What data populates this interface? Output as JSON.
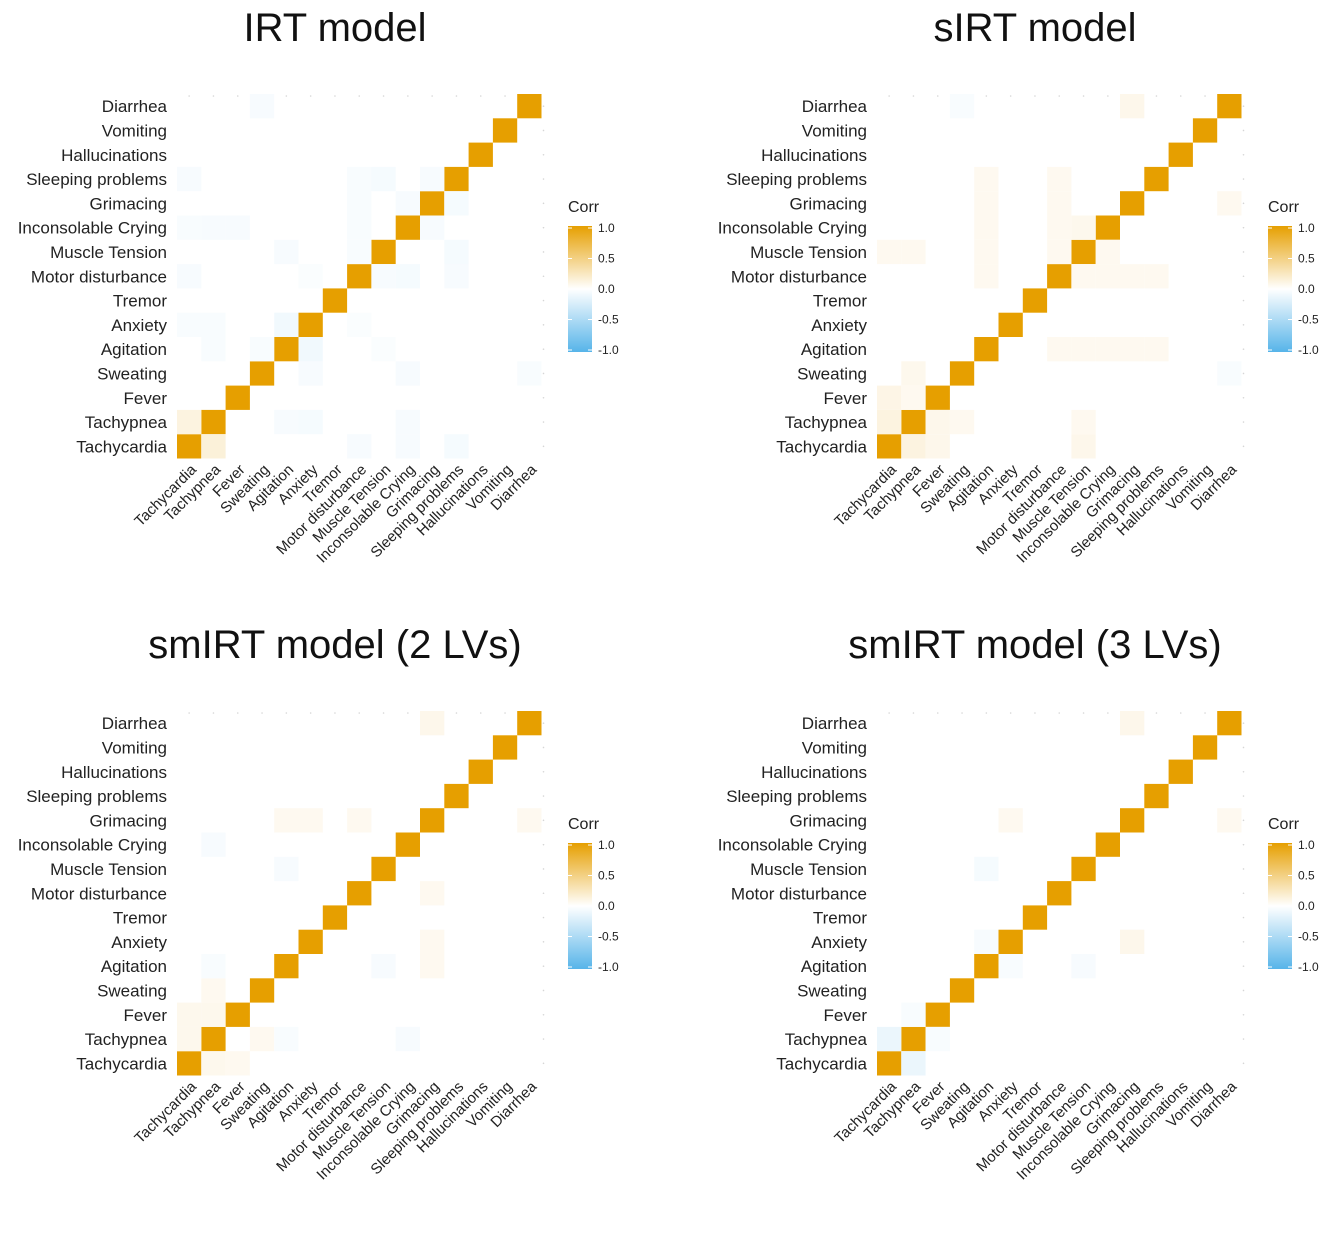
{
  "variables": [
    "Tachycardia",
    "Tachypnea",
    "Fever",
    "Sweating",
    "Agitation",
    "Anxiety",
    "Tremor",
    "Motor disturbance",
    "Muscle Tension",
    "Inconsolable Crying",
    "Grimacing",
    "Sleeping problems",
    "Hallucinations",
    "Vomiting",
    "Diarrhea"
  ],
  "colors": {
    "high": "#E69F00",
    "mid": "#FFFFFF",
    "low": "#56B4E9"
  },
  "legend": {
    "title": "Corr",
    "ticks": [
      "1.0",
      "0.5",
      "0.0",
      "-0.5",
      "-1.0"
    ]
  },
  "chart_data": [
    {
      "type": "heatmap",
      "title": "IRT model",
      "scale": [
        -1,
        1
      ],
      "cells": [
        [
          1,
          0,
          0.15
        ],
        [
          7,
          0,
          -0.05
        ],
        [
          9,
          0,
          -0.05
        ],
        [
          11,
          0,
          -0.06
        ],
        [
          0,
          1,
          0.12
        ],
        [
          4,
          1,
          -0.05
        ],
        [
          5,
          1,
          -0.06
        ],
        [
          9,
          1,
          -0.05
        ],
        [
          5,
          3,
          -0.05
        ],
        [
          9,
          3,
          -0.05
        ],
        [
          1,
          4,
          -0.04
        ],
        [
          3,
          4,
          -0.04
        ],
        [
          5,
          4,
          -0.08
        ],
        [
          8,
          4,
          -0.03
        ],
        [
          0,
          5,
          -0.04
        ],
        [
          1,
          5,
          -0.04
        ],
        [
          4,
          5,
          -0.08
        ],
        [
          7,
          5,
          -0.03
        ],
        [
          0,
          7,
          -0.05
        ],
        [
          5,
          7,
          -0.03
        ],
        [
          8,
          7,
          -0.05
        ],
        [
          9,
          7,
          -0.06
        ],
        [
          11,
          7,
          -0.05
        ],
        [
          4,
          8,
          -0.05
        ],
        [
          7,
          8,
          -0.04
        ],
        [
          11,
          8,
          -0.06
        ],
        [
          0,
          9,
          -0.04
        ],
        [
          1,
          9,
          -0.05
        ],
        [
          2,
          9,
          -0.05
        ],
        [
          7,
          9,
          -0.04
        ],
        [
          10,
          9,
          -0.05
        ],
        [
          7,
          10,
          -0.04
        ],
        [
          9,
          10,
          -0.05
        ],
        [
          11,
          10,
          -0.06
        ],
        [
          0,
          11,
          -0.05
        ],
        [
          7,
          11,
          -0.04
        ],
        [
          8,
          11,
          -0.06
        ],
        [
          10,
          11,
          -0.05
        ],
        [
          3,
          14,
          -0.05
        ],
        [
          14,
          3,
          -0.04
        ]
      ]
    },
    {
      "type": "heatmap",
      "title": "sIRT model",
      "scale": [
        -1,
        1
      ],
      "cells": [
        [
          1,
          0,
          0.12
        ],
        [
          2,
          0,
          0.08
        ],
        [
          8,
          0,
          0.08
        ],
        [
          0,
          1,
          0.12
        ],
        [
          2,
          1,
          0.08
        ],
        [
          3,
          1,
          0.06
        ],
        [
          8,
          1,
          0.06
        ],
        [
          0,
          2,
          0.1
        ],
        [
          1,
          2,
          0.06
        ],
        [
          1,
          3,
          0.07
        ],
        [
          14,
          3,
          -0.04
        ],
        [
          7,
          4,
          0.06
        ],
        [
          8,
          4,
          0.06
        ],
        [
          9,
          4,
          0.06
        ],
        [
          10,
          4,
          0.06
        ],
        [
          11,
          4,
          0.06
        ],
        [
          8,
          7,
          0.06
        ],
        [
          9,
          7,
          0.06
        ],
        [
          10,
          7,
          0.06
        ],
        [
          11,
          7,
          0.06
        ],
        [
          4,
          7,
          0.06
        ],
        [
          0,
          8,
          0.06
        ],
        [
          1,
          8,
          0.06
        ],
        [
          4,
          8,
          0.06
        ],
        [
          7,
          8,
          0.06
        ],
        [
          9,
          8,
          0.06
        ],
        [
          4,
          9,
          0.06
        ],
        [
          7,
          9,
          0.06
        ],
        [
          8,
          9,
          0.07
        ],
        [
          4,
          10,
          0.06
        ],
        [
          7,
          10,
          0.06
        ],
        [
          14,
          10,
          0.06
        ],
        [
          4,
          11,
          0.06
        ],
        [
          7,
          11,
          0.06
        ],
        [
          3,
          14,
          -0.04
        ],
        [
          10,
          14,
          0.08
        ]
      ]
    },
    {
      "type": "heatmap",
      "title": "smIRT model (2 LVs)",
      "scale": [
        -1,
        1
      ],
      "cells": [
        [
          1,
          0,
          0.07
        ],
        [
          2,
          0,
          0.06
        ],
        [
          0,
          1,
          0.07
        ],
        [
          3,
          1,
          0.06
        ],
        [
          4,
          1,
          -0.04
        ],
        [
          9,
          1,
          -0.05
        ],
        [
          0,
          2,
          0.07
        ],
        [
          1,
          2,
          0.07
        ],
        [
          1,
          3,
          0.06
        ],
        [
          1,
          4,
          -0.04
        ],
        [
          8,
          4,
          -0.05
        ],
        [
          10,
          4,
          0.06
        ],
        [
          10,
          5,
          0.06
        ],
        [
          10,
          7,
          0.06
        ],
        [
          4,
          8,
          -0.05
        ],
        [
          1,
          9,
          -0.05
        ],
        [
          4,
          10,
          0.06
        ],
        [
          5,
          10,
          0.06
        ],
        [
          7,
          10,
          0.06
        ],
        [
          14,
          10,
          0.06
        ],
        [
          10,
          14,
          0.08
        ]
      ]
    },
    {
      "type": "heatmap",
      "title": "smIRT model (3 LVs)",
      "scale": [
        -1,
        1
      ],
      "cells": [
        [
          1,
          0,
          -0.12
        ],
        [
          0,
          1,
          -0.12
        ],
        [
          2,
          1,
          -0.04
        ],
        [
          1,
          2,
          -0.04
        ],
        [
          5,
          4,
          -0.04
        ],
        [
          8,
          4,
          -0.05
        ],
        [
          4,
          5,
          -0.05
        ],
        [
          10,
          5,
          0.08
        ],
        [
          4,
          8,
          -0.06
        ],
        [
          5,
          10,
          0.06
        ],
        [
          14,
          10,
          0.06
        ],
        [
          10,
          14,
          0.08
        ]
      ]
    }
  ]
}
